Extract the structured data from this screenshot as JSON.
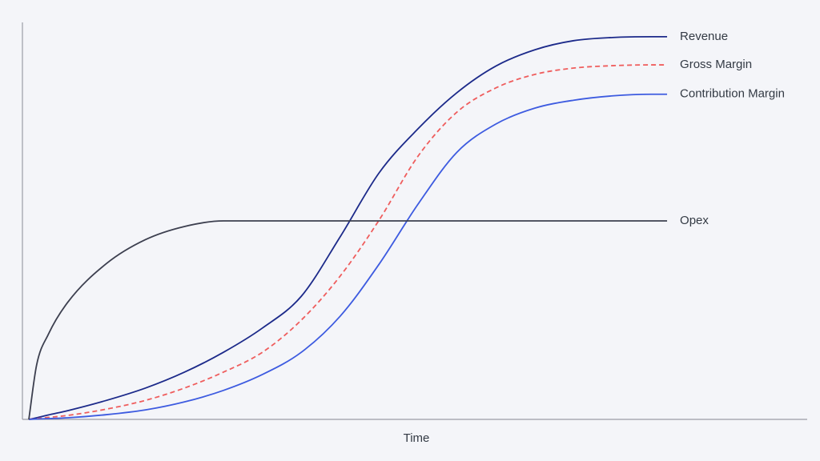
{
  "chart_data": {
    "type": "line",
    "x_label": "Time",
    "x": [
      0,
      1,
      2.5,
      5,
      10,
      15,
      20,
      25,
      30,
      35,
      40,
      45,
      50,
      55,
      60,
      65,
      70,
      75,
      80,
      82
    ],
    "xlim": [
      0,
      100
    ],
    "ylim": [
      0,
      100
    ],
    "series": [
      {
        "name": "Revenue",
        "color": "#1c2a8a",
        "line_style": "solid",
        "values": [
          0,
          0.4,
          1.1,
          2.2,
          4.8,
          7.9,
          11.9,
          16.9,
          23.0,
          31.0,
          46.0,
          62.1,
          73.2,
          82.3,
          89.0,
          93.1,
          95.4,
          96.2,
          96.4,
          96.4
        ]
      },
      {
        "name": "Gross Margin",
        "color": "#ef5d5d",
        "line_style": "dashed",
        "values": [
          0,
          0.2,
          0.5,
          1.0,
          2.6,
          4.8,
          7.9,
          11.9,
          16.9,
          25.0,
          36.1,
          50.2,
          66.3,
          77.4,
          83.5,
          86.9,
          88.5,
          89.1,
          89.3,
          89.3
        ]
      },
      {
        "name": "Contribution Margin",
        "color": "#3d5be0",
        "line_style": "solid",
        "values": [
          0,
          0.1,
          0.2,
          0.4,
          1.2,
          2.4,
          4.4,
          7.3,
          11.3,
          16.9,
          26.0,
          39.1,
          54.2,
          67.3,
          74.4,
          78.4,
          80.4,
          81.5,
          81.9,
          81.9
        ]
      },
      {
        "name": "Opex",
        "color": "#3c3f4f",
        "line_style": "solid",
        "values": [
          0,
          13.7,
          21.4,
          29.5,
          39.3,
          45.3,
          48.6,
          50,
          50,
          50,
          50,
          50,
          50,
          50,
          50,
          50,
          50,
          50,
          50,
          50
        ]
      }
    ]
  }
}
